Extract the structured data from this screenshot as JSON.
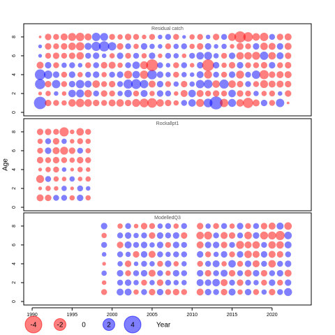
{
  "chart_data": [
    {
      "type": "bubble",
      "title": "Residual catch",
      "x": [
        1991,
        1992,
        1993,
        1994,
        1995,
        1996,
        1997,
        1998,
        1999,
        2000,
        2001,
        2002,
        2003,
        2004,
        2005,
        2006,
        2007,
        2008,
        2009,
        2010,
        2011,
        2012,
        2013,
        2014,
        2015,
        2016,
        2017,
        2018,
        2019,
        2020,
        2021,
        2022
      ],
      "y": [
        1,
        2,
        3,
        4,
        5,
        6,
        7,
        8
      ],
      "values": [
        [
          2.2,
          -0.6,
          -0.5,
          -0.4,
          -0.8,
          -1,
          -0.8,
          -0.6,
          -0.5,
          -0.7,
          -0.8,
          -0.6,
          -0.9,
          -1.1,
          -1.3,
          -0.8,
          -0.6,
          -0.4,
          0.5,
          0.8,
          -0.9,
          1.1,
          2.4,
          -1,
          0.9,
          -0.8,
          -1.5,
          -0.7,
          0.6,
          -0.5,
          1,
          -0.1
        ],
        [
          -0.2,
          -0.4,
          0.3,
          -0.3,
          0.8,
          0.9,
          -0.8,
          0.5,
          -0.6,
          -0.5,
          0.4,
          0.8,
          -0.5,
          0.7,
          -0.4,
          0.6,
          0.5,
          -0.3,
          -0.7,
          0.8,
          -0.7,
          -0.5,
          -0.6,
          -0.5,
          0.8,
          -0.6,
          -0.5,
          0.4,
          -0.4,
          -0.5,
          0.3,
          -0.6
        ],
        [
          1.5,
          -0.6,
          1,
          -0.5,
          0.6,
          1,
          0.7,
          -0.8,
          -0.5,
          -0.6,
          0.5,
          1.2,
          1.4,
          1,
          -0.7,
          0.6,
          -0.5,
          0.4,
          -0.6,
          0.4,
          1,
          1.1,
          -0.8,
          1.2,
          -0.8,
          -0.6,
          0.5,
          -0.5,
          -0.9,
          -0.7,
          -0.7,
          -0.6
        ],
        [
          1.6,
          1,
          0.6,
          -0.5,
          0.6,
          -0.4,
          0.5,
          0.6,
          -0.4,
          0.5,
          0.6,
          -0.9,
          0.8,
          -1,
          1.3,
          0.6,
          0.4,
          -0.5,
          0.4,
          0.3,
          0.7,
          -0.9,
          0.5,
          -0.5,
          0.6,
          -0.9,
          0.5,
          1,
          -1.2,
          -0.6,
          -0.7,
          -0.7
        ],
        [
          -0.7,
          0.6,
          -0.5,
          0.4,
          0.5,
          0.3,
          -0.5,
          0.5,
          -0.6,
          -0.7,
          -0.4,
          0.5,
          0.8,
          -0.9,
          -2,
          0.5,
          0.3,
          -0.5,
          0.5,
          -0.3,
          0.6,
          -2,
          0.6,
          -0.4,
          -0.6,
          0.6,
          -0.5,
          -0.5,
          -0.6,
          0.6,
          -0.5,
          -0.6
        ],
        [
          0.2,
          -0.5,
          -0.6,
          -0.5,
          -0.6,
          -0.8,
          0.5,
          0.6,
          0.3,
          -0.4,
          0.6,
          -0.5,
          0.5,
          -0.4,
          0.6,
          -0.3,
          0.5,
          0.4,
          -0.3,
          0.5,
          0.8,
          0.9,
          0.4,
          -0.5,
          0.6,
          -0.8,
          -0.8,
          -0.9,
          1,
          -0.8,
          0.7,
          -0.6
        ],
        [
          0.2,
          -0.6,
          -0.5,
          -0.6,
          -0.8,
          -1,
          0.7,
          1.2,
          1.5,
          1,
          -0.6,
          0.5,
          -0.4,
          0.6,
          0.4,
          0.3,
          -0.5,
          0.4,
          0.5,
          -0.4,
          -0.6,
          0.6,
          0.3,
          0.4,
          -0.3,
          -0.7,
          -0.5,
          0.6,
          -0.8,
          -0.7,
          0.6,
          -0.7
        ],
        [
          -0.1,
          -0.6,
          -0.5,
          -0.7,
          -0.9,
          -1,
          -0.7,
          1,
          0.9,
          -0.5,
          -0.4,
          -0.6,
          -0.5,
          -0.3,
          -0.5,
          0.3,
          0.5,
          -0.5,
          0.2,
          -0.4,
          -0.5,
          0.3,
          -0.6,
          0.5,
          -0.9,
          -1.8,
          -1.3,
          -0.8,
          -1,
          0.5,
          -0.6,
          -0.7
        ]
      ],
      "neg_color": "#ff0000",
      "pos_color": "#0000ff",
      "xlim": [
        1988.95,
        2024.9
      ],
      "ylim": [
        -0.37,
        9.4
      ],
      "yticks": [
        0,
        2,
        4,
        6,
        8
      ]
    },
    {
      "type": "bubble",
      "title": "Rockallpt1",
      "x": [
        1991,
        1992,
        1993,
        1994,
        1995,
        1996,
        1997
      ],
      "y": [
        1,
        2,
        3,
        4,
        5,
        6,
        7,
        8
      ],
      "values": [
        [
          -0.7,
          -0.6,
          0.5,
          0.5,
          -0.4,
          0.6,
          -0.4
        ],
        [
          -0.2,
          -0.4,
          -0.3,
          0.4,
          -0.2,
          0.5,
          0.3
        ],
        [
          -0.9,
          0.5,
          -0.4,
          -0.3,
          0.4,
          -0.3,
          -0.4
        ],
        [
          -0.2,
          -0.4,
          -0.5,
          0.3,
          -0.2,
          -0.4,
          -0.3
        ],
        [
          -0.6,
          -0.5,
          -0.6,
          -0.5,
          -0.4,
          -0.6,
          -0.5
        ],
        [
          -0.5,
          0.6,
          -0.7,
          -0.9,
          -0.6,
          0.5,
          -0.4
        ],
        [
          -0.4,
          0.5,
          -0.6,
          0.4,
          -0.3,
          -0.5,
          -0.4
        ],
        [
          -0.6,
          -0.6,
          -0.5,
          -1.2,
          -0.3,
          -0.8,
          -0.5
        ]
      ],
      "neg_color": "#ff0000",
      "pos_color": "#0000ff",
      "xlim": [
        1988.95,
        2024.9
      ],
      "ylim": [
        -0.37,
        9.4
      ],
      "yticks": [
        0,
        2,
        4,
        6,
        8
      ],
      "ylabel": "Age"
    },
    {
      "type": "bubble",
      "title": "ModelledQ3",
      "x": [
        1999,
        2000,
        2001,
        2002,
        2003,
        2004,
        2005,
        2006,
        2007,
        2008,
        2009,
        2010,
        2011,
        2012,
        2013,
        2014,
        2015,
        2016,
        2017,
        2018,
        2019,
        2020,
        2021,
        2022
      ],
      "y": [
        1,
        2,
        3,
        4,
        5,
        6,
        7,
        8
      ],
      "values": [
        [
          -0.5,
          null,
          0.7,
          0.7,
          -0.4,
          0.5,
          -0.6,
          0.6,
          -0.5,
          -0.6,
          -0.5,
          null,
          -0.7,
          0.6,
          0.5,
          -0.6,
          0.7,
          -0.4,
          0.6,
          -0.5,
          0.4,
          -0.6,
          0.5,
          0.9
        ],
        [
          -0.3,
          null,
          0.5,
          0.6,
          0.4,
          -0.5,
          0.4,
          -0.6,
          0.5,
          0.4,
          0.4,
          null,
          0.7,
          0.6,
          0.8,
          -0.7,
          0.5,
          -0.6,
          0.5,
          0.4,
          -0.5,
          0.6,
          -0.5,
          0.6
        ],
        [
          0.4,
          null,
          0.6,
          -0.5,
          0.5,
          0.6,
          -0.7,
          0.5,
          -0.4,
          0.6,
          0.5,
          null,
          0.6,
          -0.6,
          0.5,
          0.7,
          -0.6,
          0.5,
          -0.7,
          0.6,
          -0.6,
          0.5,
          0.6,
          -0.7
        ],
        [
          -0.2,
          null,
          0.4,
          -0.6,
          0.3,
          0.5,
          0.4,
          -0.5,
          0.6,
          -0.4,
          0.4,
          null,
          -0.5,
          0.5,
          0.7,
          -0.4,
          0.8,
          -0.5,
          0.6,
          -0.7,
          0.5,
          -0.8,
          0.5,
          0.6
        ],
        [
          0.3,
          null,
          0.5,
          0.4,
          -0.6,
          0.6,
          -0.7,
          0.5,
          0.4,
          0.5,
          0.5,
          null,
          0.6,
          -0.5,
          0.4,
          0.6,
          -0.5,
          0.6,
          -0.8,
          -0.7,
          0.6,
          -0.7,
          -0.6,
          0.5
        ],
        [
          0.5,
          null,
          -0.6,
          0.7,
          0.5,
          0.6,
          0.4,
          0.6,
          -0.5,
          0.6,
          0.5,
          null,
          -0.7,
          0.6,
          0.6,
          -0.6,
          0.5,
          -0.9,
          -0.7,
          -0.8,
          0.5,
          -0.8,
          -0.8,
          0.7
        ],
        [
          -0.4,
          null,
          0.5,
          0.6,
          0.4,
          0.5,
          -0.6,
          0.6,
          0.5,
          0.6,
          -0.6,
          null,
          -0.8,
          -0.9,
          0.5,
          -0.7,
          -0.6,
          0.5,
          -0.8,
          0.6,
          -0.9,
          -0.9,
          -1.2,
          0.8
        ],
        [
          0.6,
          null,
          -0.4,
          0.5,
          -0.3,
          -0.6,
          -0.5,
          0.4,
          0.5,
          -0.4,
          0.5,
          null,
          -0.6,
          0.4,
          -0.5,
          0.5,
          -0.4,
          0.6,
          -0.5,
          0.5,
          -0.6,
          -0.7,
          0.7,
          -0.8
        ]
      ],
      "neg_color": "#ff0000",
      "pos_color": "#0000ff",
      "xlim": [
        1988.95,
        2024.9
      ],
      "ylim": [
        -0.37,
        9.4
      ],
      "yticks": [
        0,
        2,
        4,
        6,
        8
      ],
      "xticks": [
        1990,
        1995,
        2000,
        2005,
        2010,
        2015,
        2020
      ],
      "size_legend": [
        -4,
        -2,
        0,
        2,
        4
      ],
      "xlabel": "Year"
    }
  ]
}
